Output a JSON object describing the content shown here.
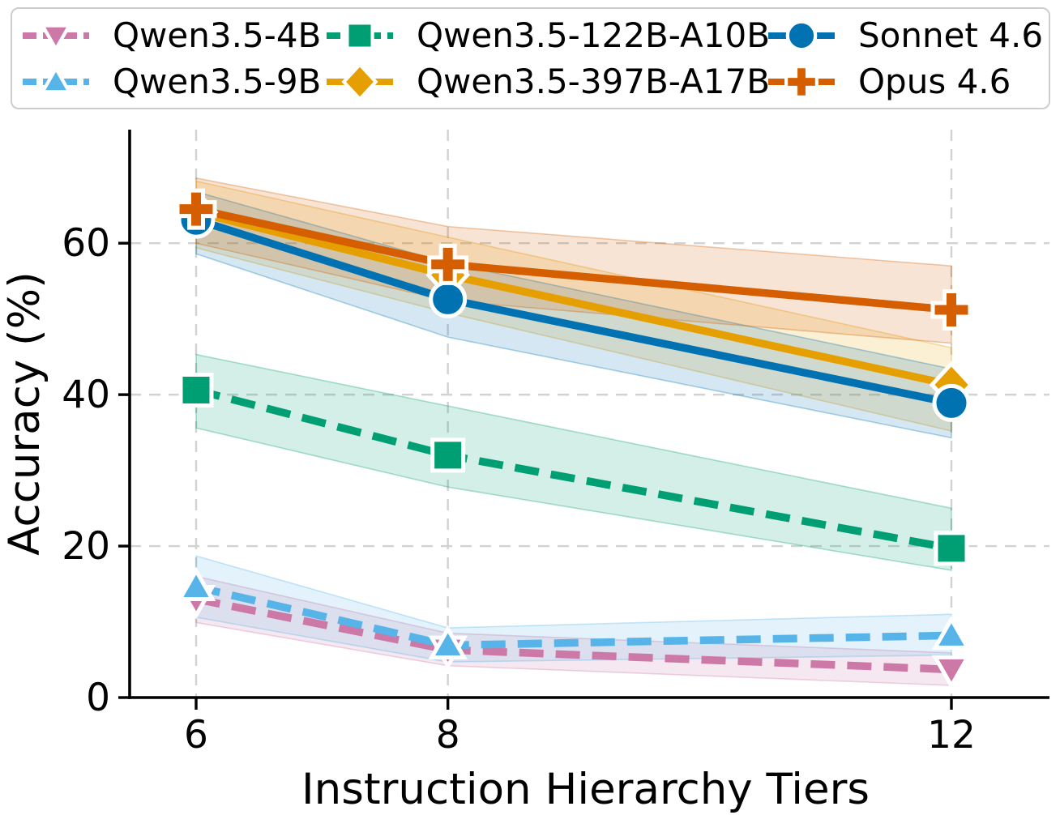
{
  "chart_data": {
    "type": "line",
    "title": "",
    "xlabel": "Instruction Hierarchy Tiers",
    "ylabel": "Accuracy (%)",
    "x": [
      6,
      8,
      12
    ],
    "xticks": [
      6,
      8,
      12
    ],
    "xtick_labels": [
      "6",
      "8",
      "12"
    ],
    "yticks": [
      0,
      20,
      40,
      60
    ],
    "ytick_labels": [
      "0",
      "20",
      "40",
      "60"
    ],
    "xlim": [
      5.47,
      12.78
    ],
    "ylim": [
      0,
      75
    ],
    "grid": true,
    "grid_style": "dashed",
    "legend_position": "top",
    "legend_columns": 3,
    "series": [
      {
        "name": "Qwen3.5-4B",
        "slug": "qwen3-5-4b",
        "color": "#CC79A7",
        "marker": "triangle-down",
        "linestyle": "dashed",
        "values": [
          13.0,
          6.3,
          3.7
        ],
        "band_low": [
          9.9,
          4.2,
          1.6
        ],
        "band_high": [
          16.0,
          8.5,
          5.9
        ]
      },
      {
        "name": "Qwen3.5-9B",
        "slug": "qwen3-5-9b",
        "color": "#56B4E9",
        "marker": "triangle-up",
        "linestyle": "dashed",
        "values": [
          14.6,
          6.9,
          8.2
        ],
        "band_low": [
          10.6,
          4.7,
          5.6
        ],
        "band_high": [
          18.7,
          9.2,
          11.0
        ]
      },
      {
        "name": "Qwen3.5-122B-A10B",
        "slug": "qwen3-5-122b-a10b",
        "color": "#009E73",
        "marker": "square",
        "linestyle": "dashed",
        "values": [
          40.6,
          32.0,
          19.7
        ],
        "band_low": [
          35.6,
          27.8,
          16.8
        ],
        "band_high": [
          45.3,
          38.5,
          25.0
        ]
      },
      {
        "name": "Qwen3.5-397B-A17B",
        "slug": "qwen3-5-397b-a17b",
        "color": "#E69F00",
        "marker": "diamond",
        "linestyle": "solid",
        "values": [
          64.1,
          55.8,
          41.3
        ],
        "band_low": [
          59.4,
          50.8,
          35.2
        ],
        "band_high": [
          68.2,
          60.8,
          46.2
        ]
      },
      {
        "name": "Sonnet 4.6",
        "slug": "sonnet-4-6",
        "color": "#0072B2",
        "marker": "circle",
        "linestyle": "solid",
        "values": [
          63.1,
          52.6,
          38.9
        ],
        "band_low": [
          58.6,
          47.6,
          34.3
        ],
        "band_high": [
          66.8,
          57.4,
          43.4
        ]
      },
      {
        "name": "Opus 4.6",
        "slug": "opus-4-6",
        "color": "#D55E00",
        "marker": "plus",
        "linestyle": "solid",
        "values": [
          64.5,
          57.2,
          51.2
        ],
        "band_low": [
          60.0,
          52.4,
          46.8
        ],
        "band_high": [
          68.6,
          62.2,
          57.0
        ]
      }
    ]
  },
  "style_colors": {
    "grid": "#d2d2d2",
    "axis": "#000000",
    "tick_label": "#000000",
    "legend_border": "#cdcdcd",
    "marker_edge": "#ffffff",
    "background": "#ffffff"
  }
}
